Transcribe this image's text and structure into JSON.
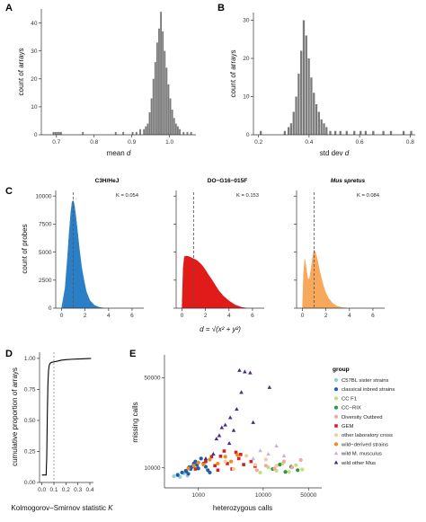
{
  "figure": {
    "labels": {
      "A": "A",
      "B": "B",
      "C": "C",
      "D": "D",
      "E": "E"
    }
  },
  "chart_data": [
    {
      "id": "A",
      "type": "bar",
      "xlabel": "mean d",
      "ylabel": "count of arrays",
      "xlim": [
        0.66,
        1.07
      ],
      "ylim": [
        0,
        45
      ],
      "xticks": [
        "0.7",
        "0.8",
        "0.9",
        "1.0"
      ],
      "xtick_values": [
        0.7,
        0.8,
        0.9,
        1.0
      ],
      "yticks": [
        "0",
        "10",
        "20",
        "30",
        "40"
      ],
      "ytick_values": [
        0,
        10,
        20,
        30,
        40
      ],
      "bins": [
        [
          0.69,
          1
        ],
        [
          0.695,
          1
        ],
        [
          0.7,
          1
        ],
        [
          0.705,
          1
        ],
        [
          0.71,
          1
        ],
        [
          0.768,
          1
        ],
        [
          0.855,
          1
        ],
        [
          0.875,
          1
        ],
        [
          0.9,
          1
        ],
        [
          0.91,
          1
        ],
        [
          0.92,
          2
        ],
        [
          0.93,
          2
        ],
        [
          0.935,
          3
        ],
        [
          0.94,
          4
        ],
        [
          0.945,
          8
        ],
        [
          0.95,
          13
        ],
        [
          0.955,
          20
        ],
        [
          0.96,
          26
        ],
        [
          0.965,
          33
        ],
        [
          0.97,
          38
        ],
        [
          0.975,
          44
        ],
        [
          0.98,
          37
        ],
        [
          0.985,
          30
        ],
        [
          0.99,
          24
        ],
        [
          0.995,
          18
        ],
        [
          1.0,
          13
        ],
        [
          1.005,
          9
        ],
        [
          1.01,
          6
        ],
        [
          1.015,
          4
        ],
        [
          1.02,
          3
        ],
        [
          1.025,
          2
        ],
        [
          1.035,
          1
        ],
        [
          1.045,
          1
        ],
        [
          1.055,
          1
        ]
      ],
      "bin_width": 0.005
    },
    {
      "id": "B",
      "type": "bar",
      "xlabel": "std dev d",
      "ylabel": "count of arrays",
      "xlim": [
        0.18,
        0.82
      ],
      "ylim": [
        0,
        32
      ],
      "xticks": [
        "0.2",
        "0.4",
        "0.6",
        "0.8"
      ],
      "xtick_values": [
        0.2,
        0.4,
        0.6,
        0.8
      ],
      "yticks": [
        "0",
        "10",
        "20",
        "30"
      ],
      "ytick_values": [
        0,
        10,
        20,
        30
      ],
      "bins": [
        [
          0.205,
          1
        ],
        [
          0.3,
          1
        ],
        [
          0.315,
          2
        ],
        [
          0.325,
          3
        ],
        [
          0.335,
          6
        ],
        [
          0.345,
          10
        ],
        [
          0.355,
          16
        ],
        [
          0.365,
          22
        ],
        [
          0.375,
          30
        ],
        [
          0.385,
          26
        ],
        [
          0.395,
          20
        ],
        [
          0.405,
          15
        ],
        [
          0.415,
          11
        ],
        [
          0.425,
          8
        ],
        [
          0.435,
          6
        ],
        [
          0.445,
          4
        ],
        [
          0.455,
          3
        ],
        [
          0.465,
          2
        ],
        [
          0.48,
          1
        ],
        [
          0.5,
          1
        ],
        [
          0.52,
          1
        ],
        [
          0.545,
          1
        ],
        [
          0.575,
          1
        ],
        [
          0.6,
          1
        ],
        [
          0.62,
          1
        ],
        [
          0.65,
          1
        ],
        [
          0.69,
          1
        ],
        [
          0.72,
          1
        ],
        [
          0.77,
          1
        ],
        [
          0.8,
          1
        ]
      ],
      "bin_width": 0.009
    },
    {
      "id": "C",
      "type": "area",
      "ylabel": "count of probes",
      "xlabel": "d = √(x² + y²)",
      "xlim": [
        -0.5,
        7
      ],
      "ylim": [
        0,
        10500
      ],
      "xticks": [
        "0",
        "2",
        "4",
        "6"
      ],
      "xtick_values": [
        0,
        2,
        4,
        6
      ],
      "yticks": [
        "0",
        "2500",
        "5000",
        "7500",
        "10000"
      ],
      "ytick_values": [
        0,
        2500,
        5000,
        7500,
        10000
      ],
      "vline": 1,
      "panels": [
        {
          "name": "C3H/HeJ",
          "k_label": "K = 0.054",
          "color": "#2b7fc6",
          "x": [
            0,
            0.3,
            0.5,
            0.65,
            0.8,
            0.9,
            1.0,
            1.1,
            1.2,
            1.35,
            1.5,
            1.7,
            1.9,
            2.1,
            2.4,
            2.8,
            3.2,
            3.6
          ],
          "y": [
            0,
            1800,
            4500,
            6800,
            8700,
            9500,
            9600,
            9100,
            8300,
            6900,
            5400,
            3700,
            2500,
            1500,
            700,
            250,
            80,
            0
          ]
        },
        {
          "name": "DO−G16−015F",
          "k_label": "K = 0.153",
          "color": "#e11a1a",
          "x": [
            0,
            0.1,
            0.2,
            0.4,
            0.6,
            0.8,
            1.0,
            1.2,
            1.4,
            1.6,
            1.8,
            2.0,
            2.2,
            2.5,
            2.8,
            3.1,
            3.5,
            4.0,
            4.5,
            5.0,
            5.5
          ],
          "y": [
            0,
            3600,
            4600,
            4650,
            4600,
            4500,
            4400,
            4300,
            4150,
            3950,
            3700,
            3400,
            3050,
            2600,
            2100,
            1600,
            1100,
            650,
            300,
            100,
            0
          ]
        },
        {
          "name": "Mus spretus",
          "k_label": "K = 0.084",
          "color": "#f7a85a",
          "x": [
            0,
            0.1,
            0.2,
            0.3,
            0.45,
            0.6,
            0.75,
            0.9,
            1.0,
            1.1,
            1.25,
            1.45,
            1.65,
            1.9,
            2.2,
            2.6,
            3.0,
            3.4,
            3.8
          ],
          "y": [
            0,
            3200,
            4400,
            3700,
            2600,
            2600,
            3600,
            4800,
            5200,
            5000,
            4400,
            3400,
            2500,
            1600,
            900,
            400,
            150,
            50,
            0
          ]
        }
      ]
    },
    {
      "id": "D",
      "type": "line",
      "xlabel": "Kolmogorov−Smirnov statistic K",
      "ylabel": "cumulative proportion of arrays",
      "xlim": [
        -0.02,
        0.43
      ],
      "ylim": [
        0,
        1.05
      ],
      "xticks": [
        "0.0",
        "0.1",
        "0.2",
        "0.3",
        "0.4"
      ],
      "xtick_values": [
        0,
        0.1,
        0.2,
        0.3,
        0.4
      ],
      "yticks": [
        "0.00",
        "0.25",
        "0.50",
        "0.75",
        "1.00"
      ],
      "ytick_values": [
        0,
        0.25,
        0.5,
        0.75,
        1.0
      ],
      "vline": 0.1,
      "x": [
        0,
        0.035,
        0.04,
        0.045,
        0.05,
        0.055,
        0.06,
        0.065,
        0.07,
        0.08,
        0.1,
        0.13,
        0.16,
        0.2,
        0.25,
        0.3,
        0.35,
        0.39,
        0.41
      ],
      "y": [
        0.06,
        0.06,
        0.2,
        0.55,
        0.8,
        0.9,
        0.94,
        0.955,
        0.962,
        0.968,
        0.972,
        0.978,
        0.985,
        0.99,
        0.993,
        0.995,
        0.997,
        0.999,
        1.0
      ]
    },
    {
      "id": "E",
      "type": "scatter",
      "xlabel": "heterozygous calls",
      "ylabel": "missing calls",
      "xscale": "log",
      "yscale": "log",
      "xlim": [
        300,
        80000
      ],
      "ylim": [
        7000,
        75000
      ],
      "xticks": [
        "1000",
        "10000",
        "50000"
      ],
      "xtick_values": [
        1000,
        10000,
        50000
      ],
      "yticks": [
        "10000",
        "50000"
      ],
      "ytick_values": [
        10000,
        50000
      ],
      "legend_title": "group",
      "legend_position": "right",
      "series": [
        {
          "name": "C57BL sister strains",
          "color": "#8fcfe0",
          "shape": "circle",
          "x": [
            420,
            480,
            520,
            600,
            680
          ],
          "y": [
            8600,
            8900,
            8500,
            9100,
            8700
          ]
        },
        {
          "name": "classical inbred strains",
          "color": "#1f5fa8",
          "shape": "circle",
          "x": [
            480,
            560,
            640,
            700,
            760,
            800,
            850,
            900,
            950,
            1000,
            1100,
            1200,
            1300,
            1400,
            1500,
            650,
            720
          ],
          "y": [
            8800,
            9200,
            9500,
            9000,
            9800,
            10200,
            10800,
            11200,
            10500,
            9900,
            11800,
            10800,
            10200,
            9600,
            9200,
            9400,
            10100
          ]
        },
        {
          "name": "CC F1",
          "color": "#c0e07e",
          "shape": "circle",
          "x": [
            9000,
            12000,
            16000,
            20000,
            25000,
            32000,
            40000
          ],
          "y": [
            9200,
            10100,
            9500,
            10800,
            9300,
            10500,
            9700
          ]
        },
        {
          "name": "CC−RIX",
          "color": "#2a9a3a",
          "shape": "circle",
          "x": [
            14000,
            18000,
            22000,
            27000,
            34000
          ],
          "y": [
            9800,
            10600,
            9300,
            10200,
            9600
          ]
        },
        {
          "name": "Diversity Outbred",
          "color": "#f4a6a6",
          "shape": "circle",
          "x": [
            8000,
            11000,
            15000,
            21000,
            28000,
            38000
          ],
          "y": [
            9600,
            10400,
            9900,
            11200,
            10100,
            11500
          ]
        },
        {
          "name": "GEM",
          "color": "#d62020",
          "shape": "square",
          "x": [
            900,
            1300,
            1800,
            2200,
            2800,
            3300,
            4200,
            5000,
            6500,
            2500,
            3800,
            1600,
            2000,
            7500,
            4500
          ],
          "y": [
            9800,
            11200,
            10400,
            12300,
            10800,
            9800,
            11800,
            10600,
            11200,
            13500,
            13200,
            12200,
            9600,
            10300,
            12700
          ]
        },
        {
          "name": "other laboratory cross",
          "color": "#fbc99a",
          "shape": "circle",
          "x": [
            2600,
            3500,
            5500,
            7500,
            11000,
            16000
          ],
          "y": [
            11200,
            9800,
            12400,
            10600,
            11600,
            10400
          ]
        },
        {
          "name": "wild−derived strains",
          "color": "#f08a1c",
          "shape": "circle",
          "x": [
            700,
            850,
            1000,
            1200,
            1500,
            2000,
            2600,
            3200,
            4000
          ],
          "y": [
            9900,
            10400,
            11000,
            10600,
            11600,
            10800,
            12200,
            11200,
            12600
          ]
        },
        {
          "name": "wild M. musculus",
          "color": "#cfaee0",
          "shape": "triangle",
          "x": [
            7000,
            9000,
            12000,
            16000,
            21000
          ],
          "y": [
            11800,
            13600,
            12800,
            14800,
            12400
          ]
        },
        {
          "name": "wild other Mus",
          "color": "#4a2a8a",
          "shape": "triangle",
          "x": [
            1300,
            1700,
            2100,
            2600,
            3100,
            3500,
            3900,
            4300,
            5200,
            6300,
            7000,
            12500,
            2300,
            1900,
            3000,
            4600
          ],
          "y": [
            11800,
            12800,
            17800,
            21500,
            24500,
            19500,
            28500,
            57000,
            55500,
            54500,
            22500,
            42000,
            20500,
            16800,
            15500,
            38500
          ]
        }
      ]
    }
  ]
}
